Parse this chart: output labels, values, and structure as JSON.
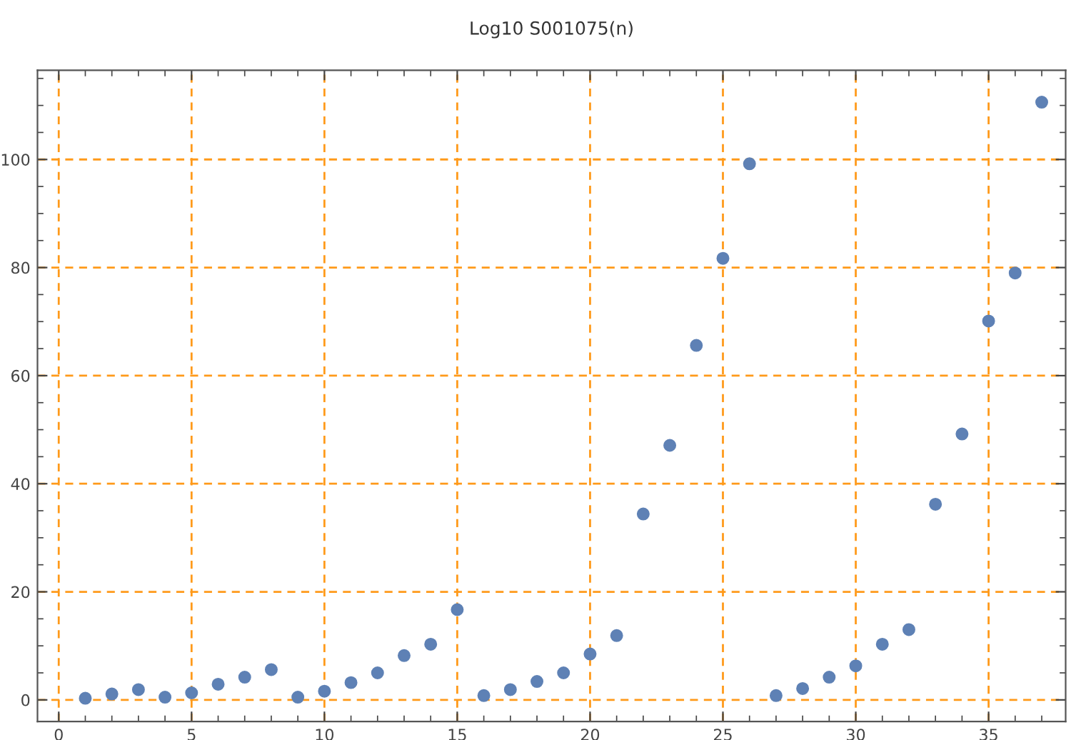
{
  "chart_data": {
    "type": "scatter",
    "title": "Log10 S001075(n)",
    "x": [
      1,
      2,
      3,
      4,
      5,
      6,
      7,
      8,
      9,
      10,
      11,
      12,
      13,
      14,
      15,
      16,
      17,
      18,
      19,
      20,
      21,
      22,
      23,
      24,
      25,
      26,
      27,
      28,
      29,
      30,
      31,
      32,
      33,
      34,
      35,
      36,
      37
    ],
    "series": [
      {
        "color": "#5e81b5",
        "values": [
          0.3,
          1.1,
          1.9,
          0.5,
          1.3,
          2.9,
          4.2,
          5.6,
          0.5,
          1.6,
          3.2,
          5.0,
          8.2,
          10.3,
          16.7,
          0.8,
          1.9,
          3.4,
          5.0,
          8.5,
          11.9,
          34.4,
          47.1,
          65.6,
          81.7,
          99.2,
          0.8,
          2.1,
          4.2,
          6.3,
          10.3,
          13.0,
          36.2,
          49.2,
          70.1,
          79.0,
          110.6
        ]
      }
    ],
    "xlim": [
      -0.8,
      37.9
    ],
    "ylim": [
      -4,
      116.5
    ],
    "xticks": [
      0,
      5,
      10,
      15,
      20,
      25,
      30,
      35
    ],
    "yticks": [
      0,
      20,
      40,
      60,
      80,
      100
    ],
    "grid": true,
    "marker": "circle"
  }
}
